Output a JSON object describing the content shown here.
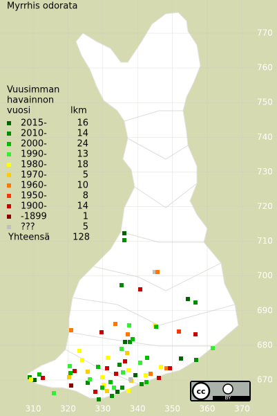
{
  "title": "Myrrhis odorata",
  "legend": {
    "header": [
      "Vuusimman",
      "havainnon",
      "vuosi"
    ],
    "count_header": "lkm",
    "rows": [
      {
        "label": "2015-",
        "count": 16,
        "color": "#006400"
      },
      {
        "label": "2010-",
        "count": 14,
        "color": "#008c00"
      },
      {
        "label": "2000-",
        "count": 24,
        "color": "#00bb00"
      },
      {
        "label": "1990-",
        "count": 13,
        "color": "#33ee33"
      },
      {
        "label": "1980-",
        "count": 18,
        "color": "#ffff00"
      },
      {
        "label": "1970-",
        "count": 5,
        "color": "#ffcc00"
      },
      {
        "label": "1960-",
        "count": 10,
        "color": "#ff7700"
      },
      {
        "label": "1950-",
        "count": 8,
        "color": "#ff3300"
      },
      {
        "label": "1900-",
        "count": 14,
        "color": "#cc0000"
      },
      {
        "label": "-1899",
        "count": 1,
        "color": "#880000"
      },
      {
        "label": "???",
        "count": 5,
        "color": "#c0c0c0"
      }
    ],
    "total_label": "Yhteensä",
    "total": 128
  },
  "grid": {
    "north": [
      770,
      760,
      750,
      740,
      730,
      720,
      710,
      700,
      690,
      680,
      670
    ],
    "east": [
      310,
      320,
      330,
      340,
      350,
      360,
      370
    ]
  },
  "badge": {
    "cc": "cc",
    "by": "BY"
  }
}
